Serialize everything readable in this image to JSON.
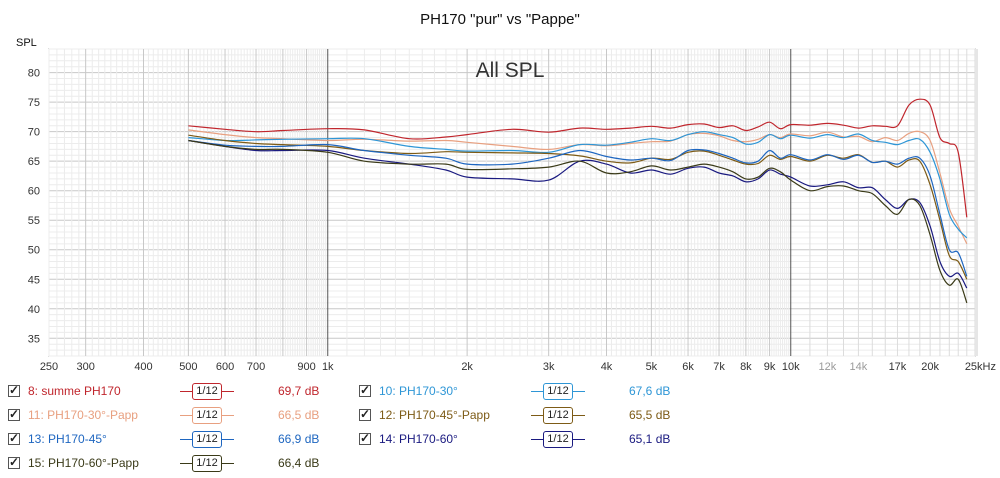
{
  "chart_data": {
    "type": "line",
    "title": "PH170 \"pur\" vs \"Pappe\"",
    "overlay_label": "All SPL",
    "ylabel": "SPL",
    "xlabel": "",
    "x_scale": "log",
    "xlim": [
      250,
      25000
    ],
    "ylim": [
      32,
      84
    ],
    "grid": true,
    "y_ticks": [
      35,
      40,
      45,
      50,
      55,
      60,
      65,
      70,
      75,
      80
    ],
    "x_ticks": [
      {
        "v": 250,
        "label": "250"
      },
      {
        "v": 300,
        "label": "300"
      },
      {
        "v": 400,
        "label": "400"
      },
      {
        "v": 500,
        "label": "500"
      },
      {
        "v": 600,
        "label": "600"
      },
      {
        "v": 700,
        "label": "700"
      },
      {
        "v": 900,
        "label": "900"
      },
      {
        "v": 1000,
        "label": "1k"
      },
      {
        "v": 2000,
        "label": "2k"
      },
      {
        "v": 3000,
        "label": "3k"
      },
      {
        "v": 4000,
        "label": "4k"
      },
      {
        "v": 5000,
        "label": "5k"
      },
      {
        "v": 6000,
        "label": "6k"
      },
      {
        "v": 7000,
        "label": "7k"
      },
      {
        "v": 8000,
        "label": "8k"
      },
      {
        "v": 9000,
        "label": "9k"
      },
      {
        "v": 10000,
        "label": "10k"
      },
      {
        "v": 12000,
        "label": "12k"
      },
      {
        "v": 14000,
        "label": "14k"
      },
      {
        "v": 17000,
        "label": "17k"
      },
      {
        "v": 20000,
        "label": "20k"
      },
      {
        "v": 25000,
        "label": "25kHz"
      }
    ],
    "series": [
      {
        "name": "8: summe PH170",
        "color": "#c0262d",
        "value_label": "69,7 dB",
        "x": [
          500,
          600,
          700,
          800,
          1000,
          1200,
          1500,
          1800,
          2000,
          2500,
          3000,
          3500,
          4000,
          4500,
          5000,
          5500,
          6000,
          6500,
          7000,
          7500,
          8000,
          8500,
          9000,
          9500,
          10000,
          11000,
          12000,
          13000,
          14000,
          15000,
          16000,
          17000,
          18000,
          19000,
          20000,
          21000,
          22000,
          23000,
          24000
        ],
        "y": [
          71,
          70.4,
          70,
          70.2,
          70.5,
          70.3,
          68.8,
          69.1,
          69.5,
          70.4,
          69.9,
          70.6,
          70.4,
          70.6,
          70.9,
          70.6,
          71.2,
          71.3,
          70.7,
          71,
          70.2,
          70.8,
          71.6,
          70.5,
          71.2,
          71.1,
          71.4,
          71.1,
          70.6,
          71,
          70.9,
          71,
          74.5,
          75.5,
          74.5,
          69,
          68,
          66.5,
          55.5
        ]
      },
      {
        "name": "11: PH170-30°-Papp",
        "color": "#e8a080",
        "value_label": "66,5 dB",
        "x": [
          500,
          600,
          700,
          800,
          1000,
          1200,
          1500,
          1800,
          2000,
          2500,
          3000,
          3500,
          4000,
          4500,
          5000,
          5500,
          6000,
          6500,
          7000,
          7500,
          8000,
          8500,
          9000,
          9500,
          10000,
          11000,
          12000,
          13000,
          14000,
          15000,
          16000,
          17000,
          18000,
          19000,
          20000,
          21000,
          22000,
          23000,
          24000
        ],
        "y": [
          70.3,
          69.5,
          69,
          68.8,
          68.5,
          68.7,
          68.4,
          68.5,
          68.2,
          67.5,
          67,
          67.8,
          67.6,
          68,
          68.3,
          68.4,
          69.5,
          69.7,
          69.3,
          68.5,
          68.3,
          68.7,
          69.5,
          69,
          69.6,
          69.3,
          69.9,
          69.1,
          69.2,
          68.3,
          69,
          68.5,
          69.7,
          70,
          68.5,
          63,
          57,
          54,
          51
        ]
      },
      {
        "name": "10: PH170-30°",
        "color": "#2e96d6",
        "value_label": "67,6 dB",
        "x": [
          500,
          600,
          700,
          800,
          1000,
          1200,
          1500,
          1800,
          2000,
          2500,
          3000,
          3500,
          4000,
          4500,
          5000,
          5500,
          6000,
          6500,
          7000,
          7500,
          8000,
          8500,
          9000,
          9500,
          10000,
          11000,
          12000,
          13000,
          14000,
          15000,
          16000,
          17000,
          18000,
          19000,
          20000,
          21000,
          22000,
          23000,
          24000
        ],
        "y": [
          69,
          68.5,
          68.6,
          68.7,
          68.8,
          68.8,
          67.5,
          67,
          66.7,
          66.8,
          66.5,
          67.8,
          67.7,
          68.2,
          68.8,
          68.5,
          69.5,
          70,
          69.5,
          69,
          67.9,
          68.2,
          69.5,
          68.8,
          69.4,
          68.9,
          69.5,
          69,
          69.6,
          68.5,
          68.2,
          67.8,
          68.5,
          68.7,
          66.5,
          62,
          56,
          53.5,
          52
        ]
      },
      {
        "name": "12: PH170-45°-Papp",
        "color": "#7d5b16",
        "value_label": "65,5 dB",
        "x": [
          500,
          600,
          700,
          800,
          1000,
          1200,
          1500,
          1800,
          2000,
          2500,
          3000,
          3500,
          4000,
          4500,
          5000,
          5500,
          6000,
          6500,
          7000,
          7500,
          8000,
          8500,
          9000,
          9500,
          10000,
          11000,
          12000,
          13000,
          14000,
          15000,
          16000,
          17000,
          18000,
          19000,
          20000,
          21000,
          22000,
          23000,
          24000
        ],
        "y": [
          69.4,
          68.5,
          68,
          67.8,
          67.5,
          66.8,
          66.3,
          66.6,
          66.5,
          66.4,
          66.3,
          65.9,
          65,
          64.7,
          65.5,
          65.3,
          66.5,
          66.7,
          66,
          65.2,
          64.5,
          64.6,
          66,
          65.3,
          65.8,
          65,
          66,
          65.5,
          66.1,
          64.8,
          65,
          64,
          65.2,
          65,
          61,
          55,
          49,
          48,
          45
        ]
      },
      {
        "name": "13: PH170-45°",
        "color": "#1e66c0",
        "value_label": "66,9 dB",
        "x": [
          500,
          600,
          700,
          800,
          1000,
          1200,
          1500,
          1800,
          2000,
          2500,
          3000,
          3500,
          4000,
          4500,
          5000,
          5500,
          6000,
          6500,
          7000,
          7500,
          8000,
          8500,
          9000,
          9500,
          10000,
          11000,
          12000,
          13000,
          14000,
          15000,
          16000,
          17000,
          18000,
          19000,
          20000,
          21000,
          22000,
          23000,
          24000
        ],
        "y": [
          68.5,
          67.7,
          67.5,
          67.5,
          67.8,
          66.8,
          66,
          65.5,
          64.5,
          64.5,
          65.5,
          66.8,
          65.8,
          65.2,
          65.5,
          65.1,
          66.8,
          66.9,
          66.3,
          65.5,
          64.7,
          65,
          66.8,
          65.5,
          66.1,
          65.2,
          66.1,
          65.3,
          66,
          64.8,
          65,
          64.5,
          65.5,
          65.5,
          62.5,
          56,
          50,
          49.5,
          45.5
        ]
      },
      {
        "name": "14: PH170-60°",
        "color": "#1a1a80",
        "value_label": "65,1 dB",
        "x": [
          500,
          600,
          700,
          800,
          1000,
          1200,
          1500,
          1800,
          2000,
          2500,
          3000,
          3500,
          4000,
          4500,
          5000,
          5500,
          6000,
          6500,
          7000,
          7500,
          8000,
          8500,
          9000,
          9500,
          10000,
          11000,
          12000,
          13000,
          14000,
          15000,
          16000,
          17000,
          18000,
          19000,
          20000,
          21000,
          22000,
          23000,
          24000
        ],
        "y": [
          68.5,
          67.5,
          66.8,
          66.8,
          66.8,
          65.5,
          64.5,
          63.5,
          62.3,
          62,
          61.8,
          65,
          64.5,
          63,
          63.5,
          62.8,
          63.8,
          64,
          63,
          62.5,
          61.5,
          62,
          63.5,
          62.8,
          62.3,
          60.8,
          61,
          61.5,
          60.5,
          60.5,
          58.5,
          57,
          58.5,
          58,
          54,
          48,
          45.5,
          46,
          43.5
        ]
      },
      {
        "name": "15: PH170-60°-Papp",
        "color": "#3a3a18",
        "value_label": "66,4 dB",
        "x": [
          500,
          600,
          700,
          800,
          1000,
          1200,
          1500,
          1800,
          2000,
          2500,
          3000,
          3500,
          4000,
          4500,
          5000,
          5500,
          6000,
          6500,
          7000,
          7500,
          8000,
          8500,
          9000,
          9500,
          10000,
          11000,
          12000,
          13000,
          14000,
          15000,
          16000,
          17000,
          18000,
          19000,
          20000,
          21000,
          22000,
          23000,
          24000
        ],
        "y": [
          68.5,
          67.5,
          67,
          67,
          66.5,
          65,
          64.5,
          64.5,
          63.6,
          63.7,
          64,
          65,
          63,
          63.2,
          64.2,
          63.5,
          64,
          64.5,
          64,
          63.2,
          62,
          62.3,
          63.8,
          63.2,
          61.8,
          60,
          60.7,
          60.8,
          60,
          59.5,
          57.5,
          56,
          58.5,
          57.5,
          52.5,
          46.5,
          44,
          45,
          41
        ]
      }
    ]
  },
  "legend": [
    {
      "name": "8: summe PH170",
      "color": "#c0262d",
      "smoothing": "1/12",
      "value": "69,7 dB"
    },
    {
      "name": "10: PH170-30°",
      "color": "#2e96d6",
      "smoothing": "1/12",
      "value": "67,6 dB"
    },
    {
      "name": "11: PH170-30°-Papp",
      "color": "#e8a080",
      "smoothing": "1/12",
      "value": "66,5 dB"
    },
    {
      "name": "12: PH170-45°-Papp",
      "color": "#7d5b16",
      "smoothing": "1/12",
      "value": "65,5 dB"
    },
    {
      "name": "13: PH170-45°",
      "color": "#1e66c0",
      "smoothing": "1/12",
      "value": "66,9 dB"
    },
    {
      "name": "14: PH170-60°",
      "color": "#1a1a80",
      "smoothing": "1/12",
      "value": "65,1 dB"
    },
    {
      "name": "15: PH170-60°-Papp",
      "color": "#3a3a18",
      "smoothing": "1/12",
      "value": "66,4 dB"
    }
  ]
}
